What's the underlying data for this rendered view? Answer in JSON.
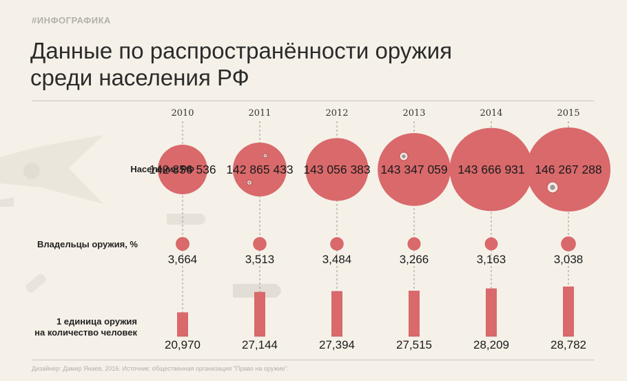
{
  "header": {
    "tag": "#ИНФОГРАФИКА",
    "title_line1": "Данные по распространённости оружия",
    "title_line2": "среди населения РФ"
  },
  "row_labels": {
    "population": "Население РФ",
    "owners": "Владельцы оружия, %",
    "ratio_line1": "1 единица оружия",
    "ratio_line2": "на количество человек"
  },
  "footer": {
    "credits": "Дизайнер: Дамир Янаев, 2016. Источник: общественная организация \"Право на оружие\"."
  },
  "colors": {
    "accent": "#d9696b",
    "accent_dark": "#c95a5c",
    "background": "#f5f1e8",
    "text": "#222222"
  },
  "chart_data": {
    "type": "bubble-and-bar",
    "title": "Данные по распространённости оружия среди населения РФ",
    "categories": [
      "2010",
      "2011",
      "2012",
      "2013",
      "2014",
      "2015"
    ],
    "series": [
      {
        "name": "Население РФ",
        "values": [
          142856536,
          142865433,
          143056383,
          143347059,
          143666931,
          146267288
        ],
        "labels": [
          "142 856 536",
          "142 865 433",
          "143 056 383",
          "143 347 059",
          "143 666 931",
          "146 267 288"
        ]
      },
      {
        "name": "Владельцы оружия, %",
        "values": [
          3.664,
          3.513,
          3.484,
          3.266,
          3.163,
          3.038
        ],
        "labels": [
          "3,664",
          "3,513",
          "3,484",
          "3,266",
          "3,163",
          "3,038"
        ]
      },
      {
        "name": "1 единица оружия на количество человек",
        "values": [
          20.97,
          27.144,
          27.394,
          27.515,
          28.209,
          28.782
        ],
        "labels": [
          "20,970",
          "27,144",
          "27,394",
          "27,515",
          "28,209",
          "28,782"
        ]
      }
    ]
  }
}
